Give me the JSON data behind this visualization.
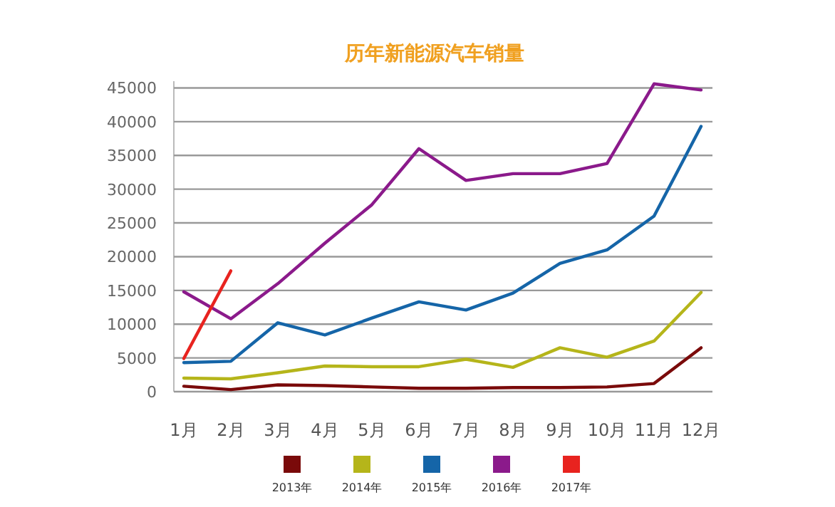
{
  "chart_data": {
    "type": "line",
    "title": "历年新能源汽车销量",
    "categories": [
      "1月",
      "2月",
      "3月",
      "4月",
      "5月",
      "6月",
      "7月",
      "8月",
      "9月",
      "10月",
      "11月",
      "12月"
    ],
    "series": [
      {
        "name": "2013年",
        "color": "#7a0a0a",
        "values": [
          800,
          300,
          1000,
          900,
          700,
          500,
          500,
          600,
          600,
          700,
          1200,
          6500
        ]
      },
      {
        "name": "2014年",
        "color": "#b5b51a",
        "values": [
          2000,
          1900,
          2800,
          3800,
          3700,
          3700,
          4800,
          3600,
          6500,
          5100,
          7500,
          14700
        ]
      },
      {
        "name": "2015年",
        "color": "#1565a8",
        "values": [
          4300,
          4500,
          10200,
          8400,
          10900,
          13300,
          12100,
          14600,
          19000,
          21000,
          26000,
          39300
        ]
      },
      {
        "name": "2016年",
        "color": "#8b1a8b",
        "values": [
          14800,
          10800,
          16000,
          22000,
          27700,
          36000,
          31300,
          32300,
          32300,
          33800,
          45600,
          44700
        ]
      },
      {
        "name": "2017年",
        "color": "#e8231f",
        "values": [
          4900,
          17900,
          null,
          null,
          null,
          null,
          null,
          null,
          null,
          null,
          null,
          null
        ]
      }
    ],
    "ylim": [
      0,
      46000
    ],
    "yticks": [
      0,
      5000,
      10000,
      15000,
      20000,
      25000,
      30000,
      35000,
      40000,
      45000
    ],
    "grid": "y",
    "legend": "bottom",
    "line_style": "solid",
    "marker": "none"
  }
}
